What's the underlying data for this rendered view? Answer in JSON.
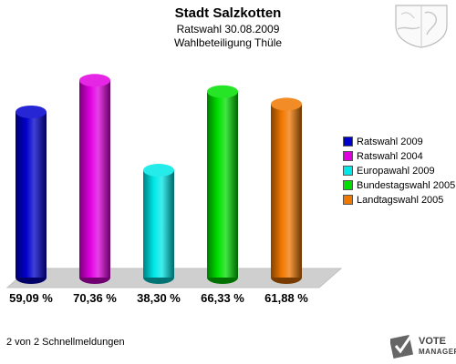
{
  "header": {
    "title": "Stadt Salzkotten",
    "subtitle": "Ratswahl 30.08.2009",
    "subtitle2": "Wahlbeteiligung Thüle"
  },
  "chart_data": {
    "type": "bar",
    "title": "Stadt Salzkotten",
    "ylim": [
      0,
      80
    ],
    "grid": false,
    "legend_position": "right",
    "categories": [
      "Ratswahl 2009",
      "Ratswahl 2004",
      "Europawahl 2009",
      "Bundestagswahl 2005",
      "Landtagswahl 2005"
    ],
    "values": [
      59.09,
      70.36,
      38.3,
      66.33,
      61.88
    ],
    "value_labels": [
      "59,09 %",
      "70,36 %",
      "38,30 %",
      "66,33 %",
      "61,88 %"
    ],
    "colors": [
      "#0000cc",
      "#e000e0",
      "#00e8e8",
      "#00e000",
      "#f07800"
    ]
  },
  "footer": {
    "text": "2 von 2 Schnellmeldungen"
  },
  "logo": {
    "line1": "VOTE",
    "line2": "MANAGER"
  },
  "icons": {
    "crest": "coat-of-arms-icon",
    "logo": "vote-manager-logo-icon"
  }
}
